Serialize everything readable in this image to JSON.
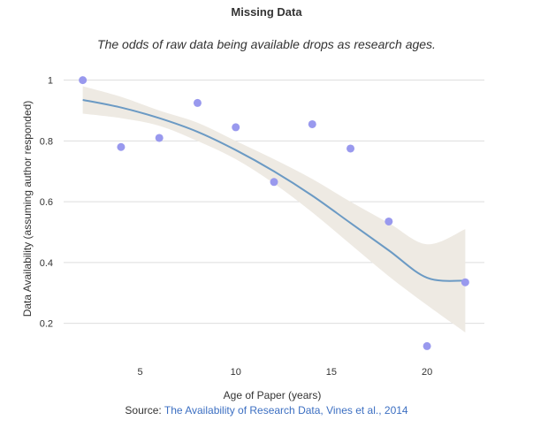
{
  "title": "Missing Data",
  "subtitle": "The odds of raw data being available drops as research ages.",
  "source": {
    "prefix": "Source:",
    "link_text": "The Availability of Research Data, Vines et al., 2014"
  },
  "colors": {
    "points": "#9999ee",
    "trend_line": "#6b9ac4",
    "confidence_band": "#eeeae3",
    "grid": "#dddddd",
    "link": "#3c6fc2"
  },
  "chart_data": {
    "type": "scatter",
    "title": "Missing Data",
    "subtitle": "The odds of raw data being available drops as research ages.",
    "xlabel": "Age of Paper (years)",
    "ylabel": "Data Availability (assuming author responded)",
    "xlim": [
      1,
      23
    ],
    "ylim": [
      0.1,
      1.06
    ],
    "x_ticks": [
      5,
      10,
      15,
      20
    ],
    "y_ticks": [
      0.2,
      0.4,
      0.6,
      0.8,
      1
    ],
    "y_tick_labels": [
      "0.2",
      "0.4",
      "0.6",
      "0.8",
      "1"
    ],
    "grid": "horizontal",
    "points": [
      {
        "x": 2,
        "y": 1.0
      },
      {
        "x": 4,
        "y": 0.78
      },
      {
        "x": 6,
        "y": 0.81
      },
      {
        "x": 8,
        "y": 0.925
      },
      {
        "x": 10,
        "y": 0.845
      },
      {
        "x": 12,
        "y": 0.665
      },
      {
        "x": 14,
        "y": 0.855
      },
      {
        "x": 16,
        "y": 0.775
      },
      {
        "x": 18,
        "y": 0.535
      },
      {
        "x": 20,
        "y": 0.125
      },
      {
        "x": 22,
        "y": 0.335
      }
    ],
    "trend": {
      "x": [
        2,
        4,
        6,
        8,
        10,
        12,
        14,
        16,
        18,
        20,
        22
      ],
      "y": [
        0.935,
        0.91,
        0.875,
        0.83,
        0.77,
        0.7,
        0.62,
        0.53,
        0.44,
        0.35,
        0.34
      ],
      "lower": [
        0.89,
        0.875,
        0.85,
        0.8,
        0.74,
        0.66,
        0.565,
        0.46,
        0.355,
        0.26,
        0.17
      ],
      "upper": [
        0.98,
        0.945,
        0.9,
        0.86,
        0.8,
        0.74,
        0.675,
        0.6,
        0.53,
        0.46,
        0.51
      ]
    }
  }
}
